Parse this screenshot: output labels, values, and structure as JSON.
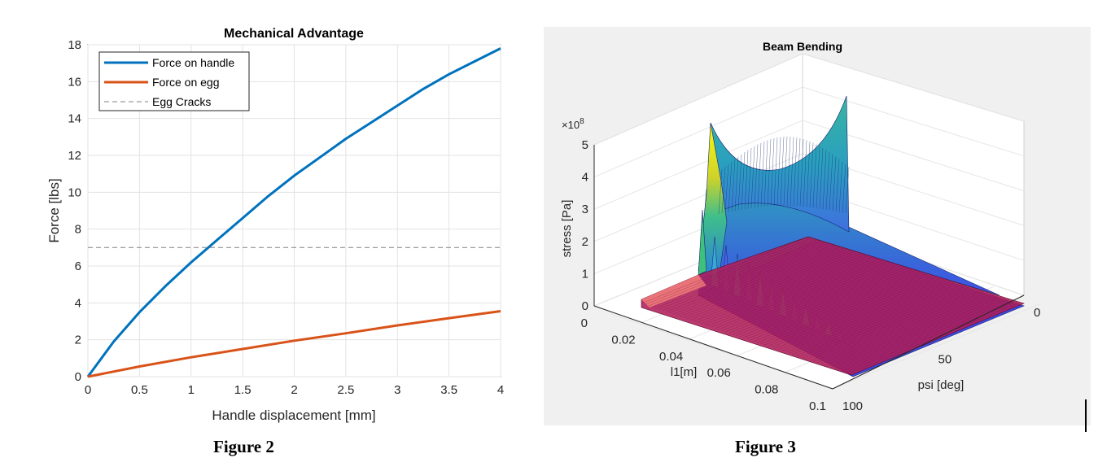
{
  "figure2": {
    "caption": "Figure 2",
    "chart_data": {
      "type": "line",
      "title": "Mechanical Advantage",
      "xlabel": "Handle displacement [mm]",
      "ylabel": "Force [lbs]",
      "xlim": [
        0,
        4
      ],
      "ylim": [
        0,
        18
      ],
      "xticks": [
        "0",
        "0.5",
        "1",
        "1.5",
        "2",
        "2.5",
        "3",
        "3.5",
        "4"
      ],
      "yticks": [
        "0",
        "2",
        "4",
        "6",
        "8",
        "10",
        "12",
        "14",
        "16",
        "18"
      ],
      "grid": true,
      "legend_position": "top-left",
      "series": [
        {
          "name": "Force on handle",
          "color": "#0072BD",
          "style": "solid",
          "x": [
            0,
            0.25,
            0.5,
            0.75,
            1,
            1.25,
            1.5,
            1.75,
            2,
            2.25,
            2.5,
            2.75,
            3,
            3.25,
            3.5,
            3.75,
            4
          ],
          "y": [
            0,
            1.9,
            3.5,
            4.9,
            6.2,
            7.4,
            8.6,
            9.8,
            10.9,
            11.9,
            12.9,
            13.8,
            14.7,
            15.6,
            16.4,
            17.1,
            17.8
          ]
        },
        {
          "name": "Force on egg",
          "color": "#D95319",
          "style": "solid",
          "x": [
            0,
            0.5,
            1,
            1.5,
            2,
            2.5,
            3,
            3.5,
            4
          ],
          "y": [
            0,
            0.55,
            1.05,
            1.5,
            1.95,
            2.35,
            2.78,
            3.17,
            3.55
          ]
        },
        {
          "name": "Egg Cracks",
          "color": "#808080",
          "style": "dashed",
          "x": [
            0,
            4
          ],
          "y": [
            7,
            7
          ]
        }
      ]
    }
  },
  "figure3": {
    "caption": "Figure 3",
    "chart_data": {
      "type": "surface",
      "title": "Beam Bending",
      "xlabel": "l1[m]",
      "ylabel": "psi [deg]",
      "zlabel": "stress [Pa]",
      "z_exponent_label": "×10",
      "z_exponent": "8",
      "xlim": [
        0,
        0.1
      ],
      "ylim": [
        0,
        100
      ],
      "zlim": [
        0,
        5
      ],
      "xticks": [
        "0",
        "0.02",
        "0.04",
        "0.06",
        "0.08",
        "0.1"
      ],
      "yticks": [
        "0",
        "50",
        "100"
      ],
      "zticks": [
        "0",
        "1",
        "2",
        "3",
        "4",
        "5"
      ],
      "z_peak_values_e8": [
        4.6,
        4.2
      ],
      "surfaces": [
        {
          "name": "stress surface",
          "colormap": "parula"
        },
        {
          "name": "allowable stress plane",
          "color": "#C0285A"
        }
      ]
    }
  }
}
